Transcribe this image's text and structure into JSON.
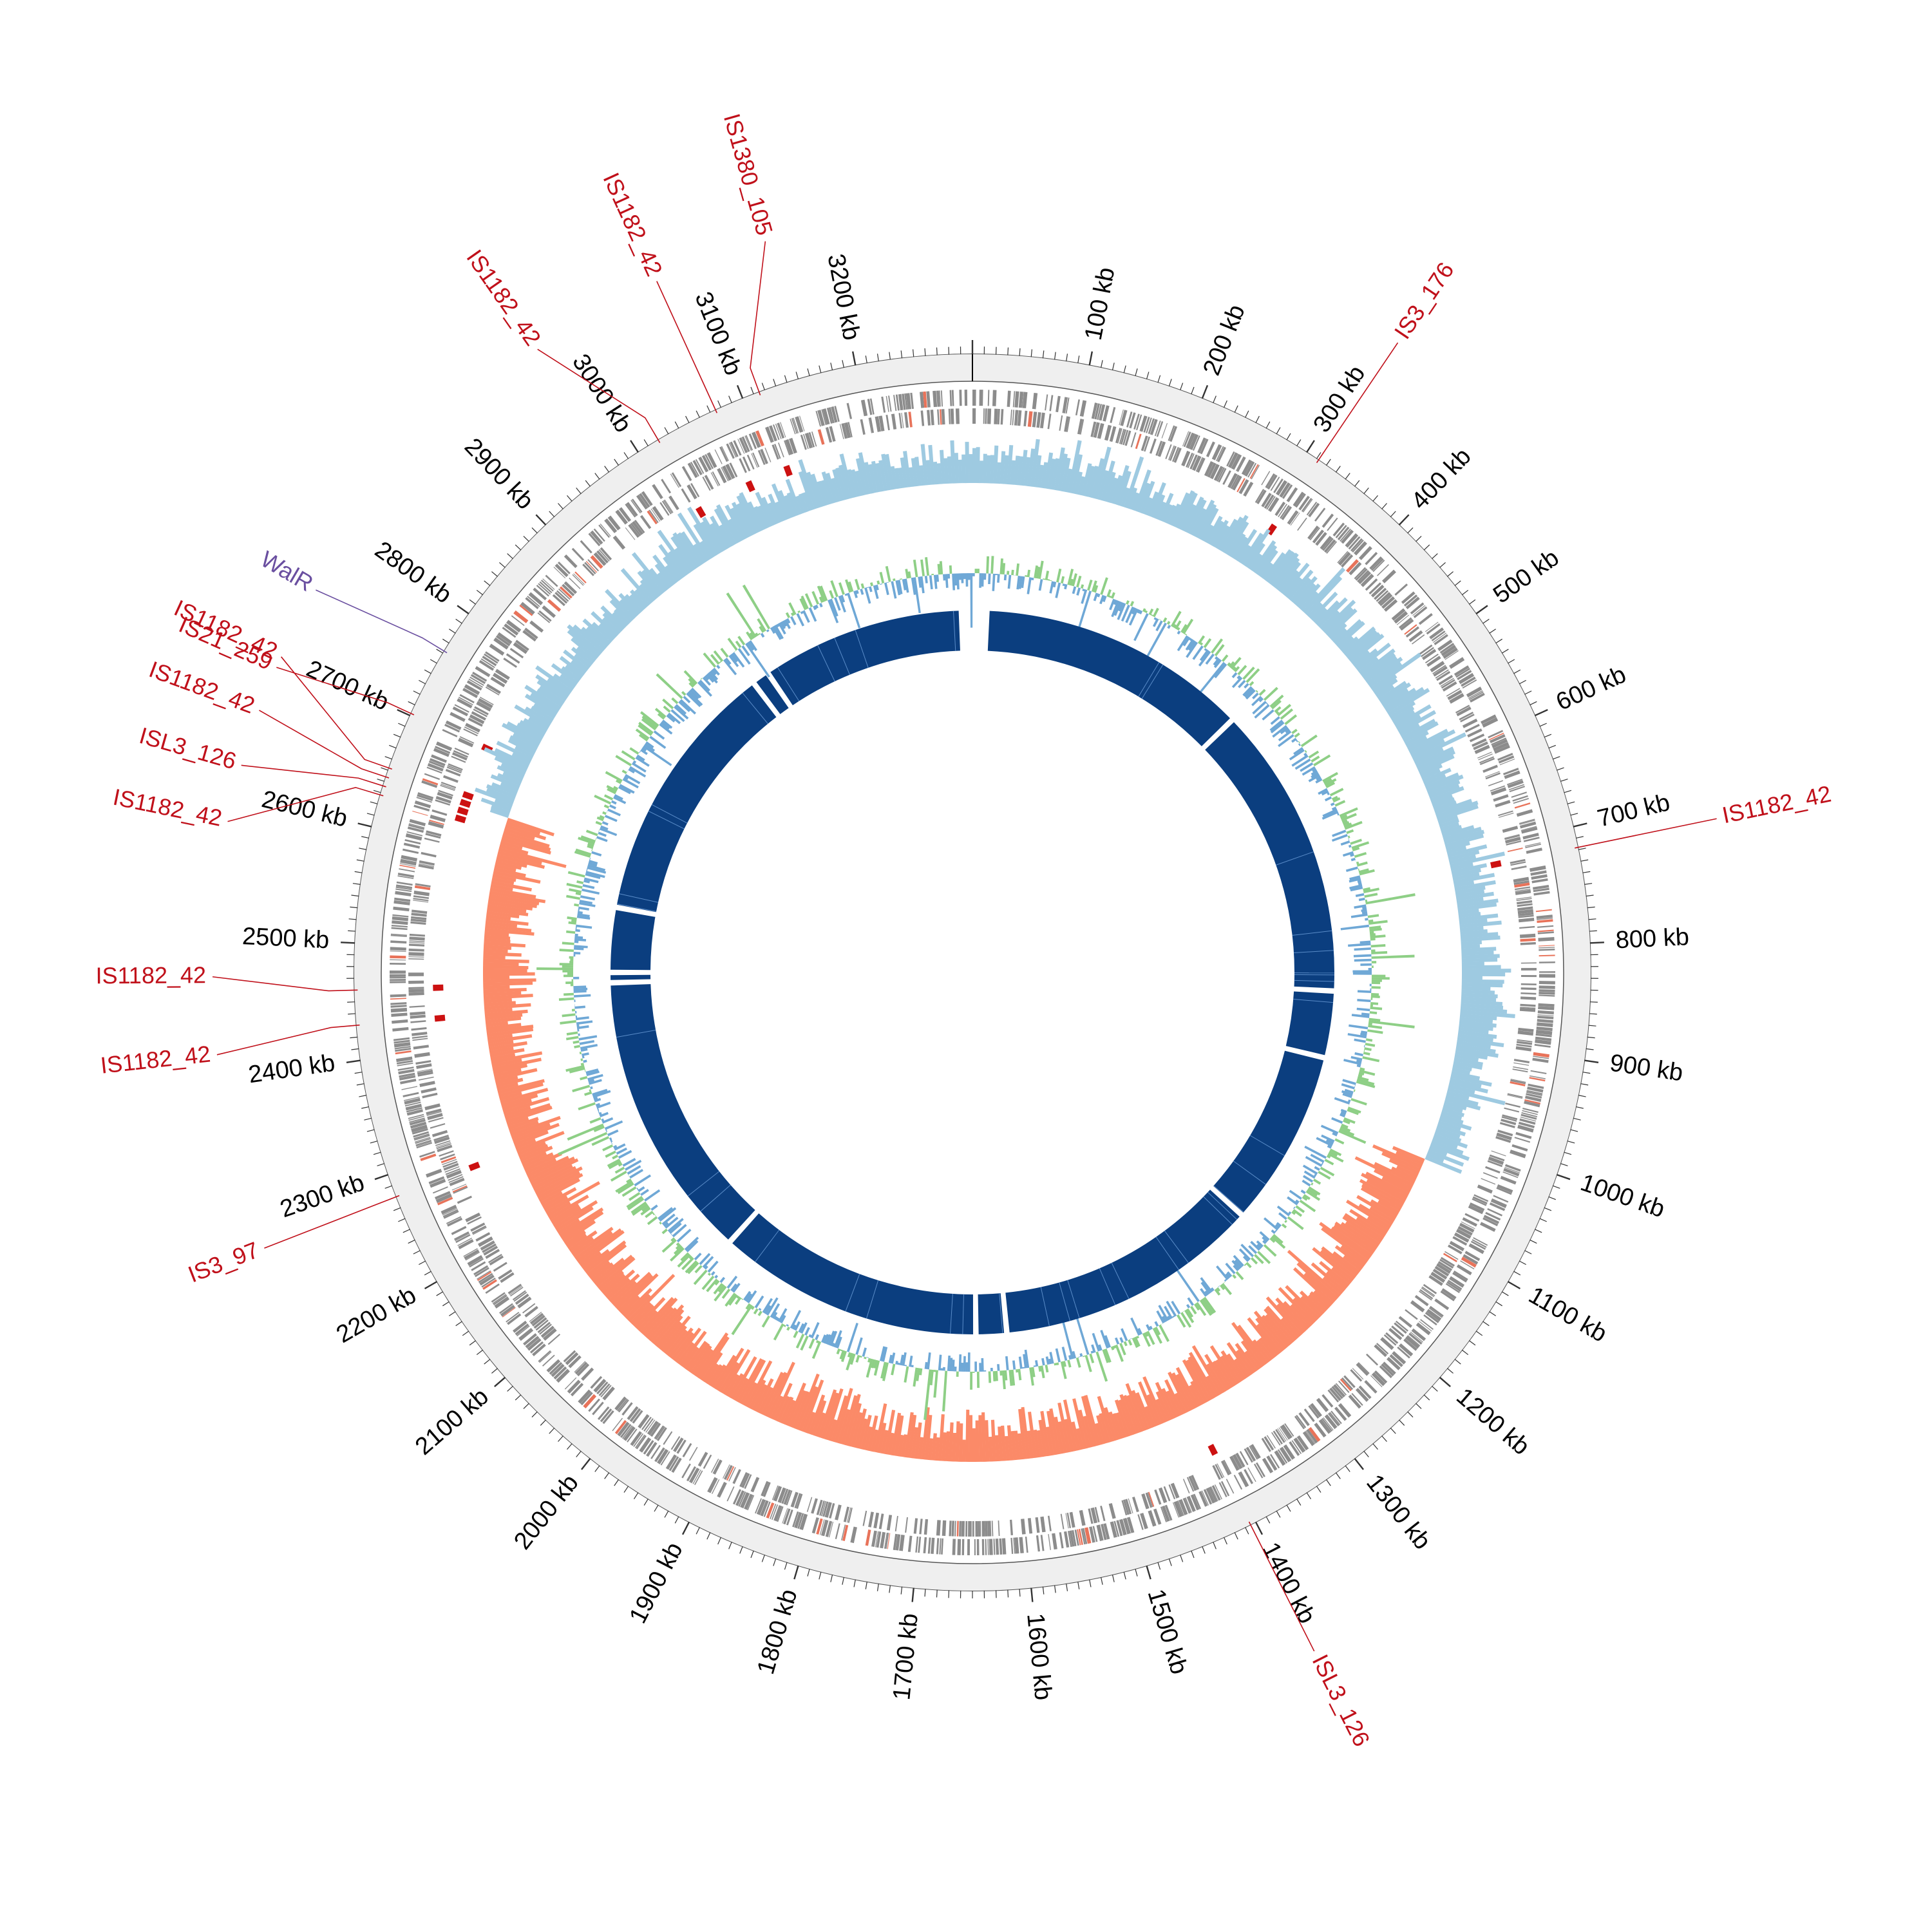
{
  "diagram": {
    "type": "circular-genome-map",
    "genome_length_kb": 3300,
    "colors": {
      "ruler_band": "#efefef",
      "ruler_stroke": "#555555",
      "gene_gray": "#8c8c8c",
      "gene_red": "#e8735a",
      "feature_red": "#cc1111",
      "gc_skew_positive": "#9ecae1",
      "gc_skew_negative": "#fb8a68",
      "gc_content_green": "#8ecf86",
      "gc_content_blue": "#6fa8d6",
      "inner_band": "#0b3e7f",
      "label_red": "#c0101a",
      "label_purple": "#6a4fa0"
    },
    "tick_labels": [
      {
        "kb": 100,
        "text": "100 kb"
      },
      {
        "kb": 200,
        "text": "200 kb"
      },
      {
        "kb": 300,
        "text": "300 kb"
      },
      {
        "kb": 400,
        "text": "400 kb"
      },
      {
        "kb": 500,
        "text": "500 kb"
      },
      {
        "kb": 600,
        "text": "600 kb"
      },
      {
        "kb": 700,
        "text": "700 kb"
      },
      {
        "kb": 800,
        "text": "800 kb"
      },
      {
        "kb": 900,
        "text": "900 kb"
      },
      {
        "kb": 1000,
        "text": "1000 kb"
      },
      {
        "kb": 1100,
        "text": "1100 kb"
      },
      {
        "kb": 1200,
        "text": "1200 kb"
      },
      {
        "kb": 1300,
        "text": "1300 kb"
      },
      {
        "kb": 1400,
        "text": "1400 kb"
      },
      {
        "kb": 1500,
        "text": "1500 kb"
      },
      {
        "kb": 1600,
        "text": "1600 kb"
      },
      {
        "kb": 1700,
        "text": "1700 kb"
      },
      {
        "kb": 1800,
        "text": "1800 kb"
      },
      {
        "kb": 1900,
        "text": "1900 kb"
      },
      {
        "kb": 2000,
        "text": "2000 kb"
      },
      {
        "kb": 2100,
        "text": "2100 kb"
      },
      {
        "kb": 2200,
        "text": "2200 kb"
      },
      {
        "kb": 2300,
        "text": "2300 kb"
      },
      {
        "kb": 2400,
        "text": "2400 kb"
      },
      {
        "kb": 2500,
        "text": "2500 kb"
      },
      {
        "kb": 2600,
        "text": "2600 kb"
      },
      {
        "kb": 2700,
        "text": "2700 kb"
      },
      {
        "kb": 2800,
        "text": "2800 kb"
      },
      {
        "kb": 2900,
        "text": "2900 kb"
      },
      {
        "kb": 3000,
        "text": "3000 kb"
      },
      {
        "kb": 3100,
        "text": "3100 kb"
      },
      {
        "kb": 3200,
        "text": "3200 kb"
      }
    ],
    "features": [
      {
        "label": "IS3_176",
        "kb": 312,
        "color": "#c0101a"
      },
      {
        "label": "IS1182_42",
        "kb": 718,
        "color": "#c0101a"
      },
      {
        "label": "ISL3_126",
        "kb": 1405,
        "color": "#c0101a"
      },
      {
        "label": "IS3_97",
        "kb": 2280,
        "color": "#c0101a"
      },
      {
        "label": "IS1182_42",
        "kb": 2430,
        "color": "#c0101a"
      },
      {
        "label": "IS1182_42",
        "kb": 2460,
        "color": "#c0101a"
      },
      {
        "label": "IS1182_42",
        "kb": 2628,
        "color": "#c0101a"
      },
      {
        "label": "ISL3_126",
        "kb": 2636,
        "color": "#c0101a"
      },
      {
        "label": "IS1182_42",
        "kb": 2644,
        "color": "#c0101a"
      },
      {
        "label": "IS1182_42",
        "kb": 2652,
        "color": "#c0101a"
      },
      {
        "label": "IS21_259",
        "kb": 2702,
        "color": "#c0101a"
      },
      {
        "label": "WalR",
        "kb": 2762,
        "color": "#6a4fa0"
      },
      {
        "label": "IS1182_42",
        "kb": 3020,
        "color": "#c0101a"
      },
      {
        "label": "IS1182_42",
        "kb": 3075,
        "color": "#c0101a"
      },
      {
        "label": "IS1380_105",
        "kb": 3115,
        "color": "#c0101a"
      }
    ],
    "inner_band_gaps_kb": [
      25,
      3280,
      420,
      852,
      950,
      1210,
      1600,
      1645,
      2035,
      2460,
      2475,
      2570,
      2960,
      2985
    ]
  }
}
